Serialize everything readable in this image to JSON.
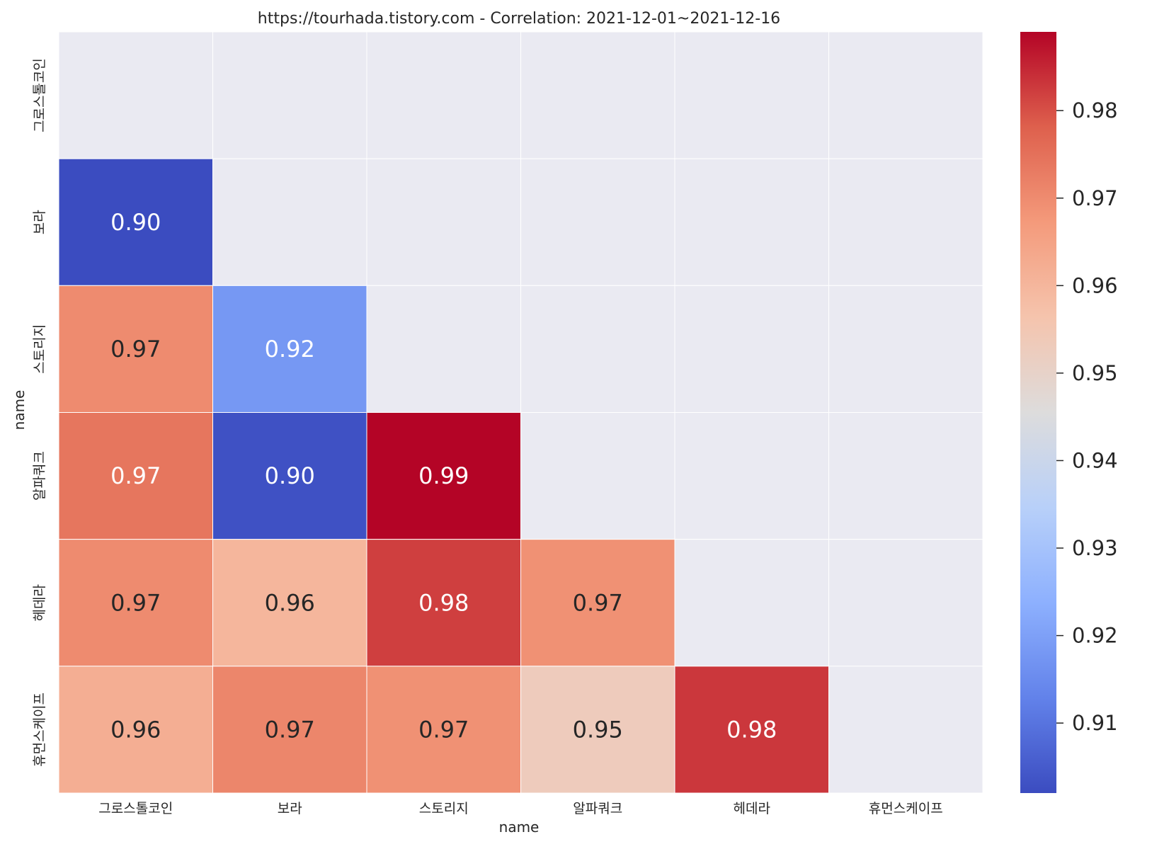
{
  "chart_data": {
    "type": "heatmap",
    "title": "https://tourhada.tistory.com - Correlation: 2021-12-01~2021-12-16",
    "xlabel": "name",
    "ylabel": "name",
    "x_categories": [
      "그로스톨코인",
      "보라",
      "스토리지",
      "알파쿼크",
      "헤데라",
      "휴먼스케이프"
    ],
    "y_categories": [
      "그로스톨코인",
      "보라",
      "스토리지",
      "알파쿼크",
      "헤데라",
      "휴먼스케이프"
    ],
    "masked": "upper-triangle-and-diagonal",
    "values": [
      [
        null,
        null,
        null,
        null,
        null,
        null
      ],
      [
        0.902,
        null,
        null,
        null,
        null,
        null
      ],
      [
        0.97,
        0.918,
        null,
        null,
        null,
        null
      ],
      [
        0.974,
        0.903,
        0.989,
        null,
        null,
        null
      ],
      [
        0.97,
        0.96,
        0.982,
        0.969,
        null,
        null
      ],
      [
        0.962,
        0.971,
        0.969,
        0.953,
        0.983,
        null
      ]
    ],
    "labels": [
      [
        "",
        "",
        "",
        "",
        "",
        ""
      ],
      [
        "0.90",
        "",
        "",
        "",
        "",
        ""
      ],
      [
        "0.97",
        "0.92",
        "",
        "",
        "",
        ""
      ],
      [
        "0.97",
        "0.90",
        "0.99",
        "",
        "",
        ""
      ],
      [
        "0.97",
        "0.96",
        "0.98",
        "0.97",
        "",
        ""
      ],
      [
        "0.96",
        "0.97",
        "0.97",
        "0.95",
        "0.98",
        ""
      ]
    ],
    "colorbar": {
      "colormap": "coolwarm",
      "vmin": 0.902,
      "vmax": 0.989,
      "ticks": [
        0.91,
        0.92,
        0.93,
        0.94,
        0.95,
        0.96,
        0.97,
        0.98
      ],
      "tick_labels": [
        "0.91",
        "0.92",
        "0.93",
        "0.94",
        "0.95",
        "0.96",
        "0.97",
        "0.98"
      ]
    },
    "colors": {
      "masked_cell": "#eaeaf2",
      "cell_border": "#ffffff",
      "annotation_dark": "#262626",
      "annotation_light": "#ffffff",
      "text": "#262626"
    }
  }
}
